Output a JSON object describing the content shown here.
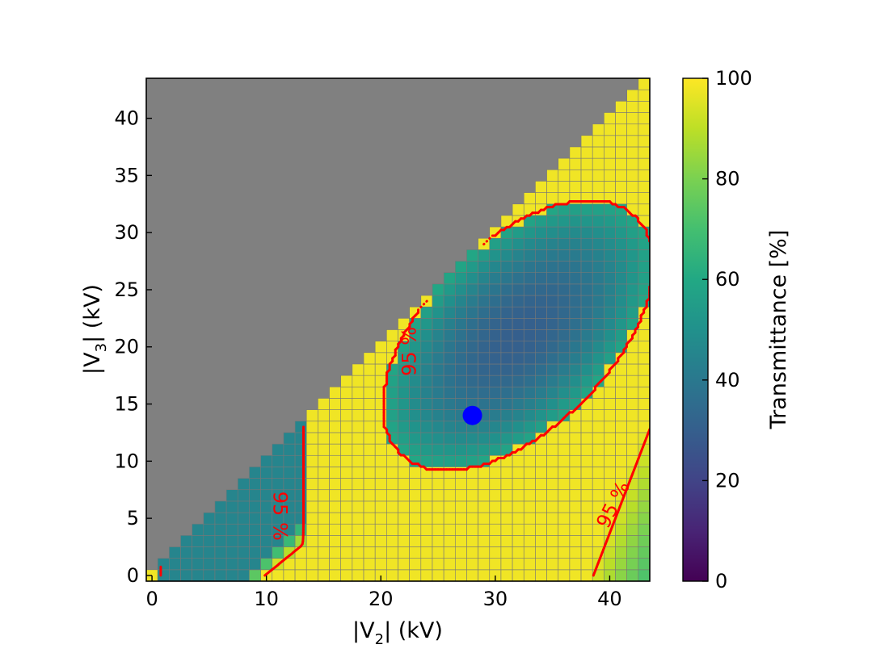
{
  "chart_data": {
    "type": "heatmap",
    "xlabel": {
      "prefix": "|V",
      "sub": "2",
      "suffix": "|  (kV)"
    },
    "ylabel": {
      "prefix": "|V",
      "sub": "3",
      "suffix": "|  (kV)"
    },
    "xlim": [
      -0.5,
      43.5
    ],
    "ylim": [
      -0.5,
      43.5
    ],
    "x_ticks": [
      0,
      10,
      20,
      30,
      40
    ],
    "y_ticks": [
      0,
      5,
      10,
      15,
      20,
      25,
      30,
      35,
      40
    ],
    "cell_size_kV": 1,
    "masked_region": "|V3| > |V2| (not computed, shown gray)",
    "colormap": "viridis",
    "colorbar": {
      "label": "Transmittance [%]",
      "min": 0,
      "max": 100,
      "ticks": [
        0,
        20,
        40,
        60,
        80,
        100
      ]
    },
    "model": {
      "plateau_percent": 98,
      "dip_center": [
        32,
        21
      ],
      "dip_min_percent": 30,
      "dip_edge_percent": 60,
      "diagonal_edge_min_percent": 45,
      "bottom_right_min_percent": 72
    },
    "contour": {
      "level_percent": 95,
      "label": "95 %",
      "color": "#ff0000"
    },
    "marker": {
      "x": 28,
      "y": 14,
      "color": "#0000ff"
    },
    "colors": {
      "masked": "#808080",
      "cell_edge": "#777777",
      "contour": "#ff0000",
      "marker": "#0000ff"
    }
  }
}
